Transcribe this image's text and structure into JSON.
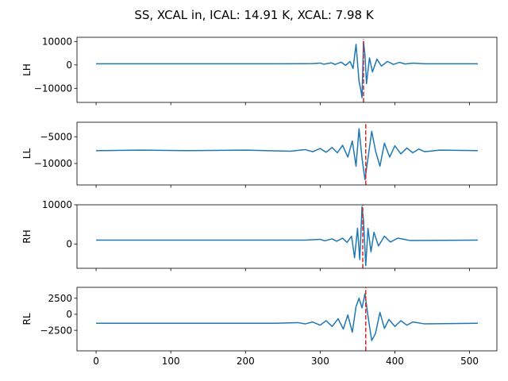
{
  "chart_data": {
    "type": "line",
    "title": "SS, XCAL in, ICAL: 14.91 K, XCAL: 7.98 K",
    "colors": {
      "series": "#1f77b4",
      "marker": "#d62728"
    },
    "x_ticks": [
      0,
      100,
      200,
      300,
      400,
      500
    ],
    "xlim": [
      -25.55,
      536.55
    ],
    "subplots": [
      {
        "ylabel": "LH",
        "ylim": [
          -16000,
          11800
        ],
        "y_ticks": [
          10000,
          0,
          -10000
        ],
        "y_tick_labels": [
          "10000",
          "0",
          "−10000"
        ],
        "marker_x": 358,
        "marker_y_range": [
          -16000,
          11000
        ],
        "baseline": 500,
        "series": [
          {
            "x": 0,
            "y": 500
          },
          {
            "x": 250,
            "y": 500
          },
          {
            "x": 290,
            "y": 550
          },
          {
            "x": 300,
            "y": 800
          },
          {
            "x": 305,
            "y": 300
          },
          {
            "x": 315,
            "y": 900
          },
          {
            "x": 320,
            "y": 200
          },
          {
            "x": 328,
            "y": 1200
          },
          {
            "x": 334,
            "y": -200
          },
          {
            "x": 340,
            "y": 1500
          },
          {
            "x": 344,
            "y": -1500
          },
          {
            "x": 348,
            "y": 8800
          },
          {
            "x": 352,
            "y": -7000
          },
          {
            "x": 354,
            "y": -10000
          },
          {
            "x": 356,
            "y": -14000
          },
          {
            "x": 358,
            "y": 10000
          },
          {
            "x": 360,
            "y": 4000
          },
          {
            "x": 362,
            "y": -8000
          },
          {
            "x": 366,
            "y": 3000
          },
          {
            "x": 370,
            "y": -3000
          },
          {
            "x": 376,
            "y": 2500
          },
          {
            "x": 382,
            "y": -500
          },
          {
            "x": 390,
            "y": 1500
          },
          {
            "x": 398,
            "y": 200
          },
          {
            "x": 406,
            "y": 1100
          },
          {
            "x": 414,
            "y": 400
          },
          {
            "x": 424,
            "y": 800
          },
          {
            "x": 440,
            "y": 500
          },
          {
            "x": 511,
            "y": 500
          }
        ]
      },
      {
        "ylabel": "LL",
        "ylim": [
          -14000,
          -2300
        ],
        "y_ticks": [
          -5000,
          -10000
        ],
        "y_tick_labels": [
          "−5000",
          "−10000"
        ],
        "marker_x": 361,
        "marker_y_range": [
          -14000,
          -2300
        ],
        "baseline": -7600,
        "series": [
          {
            "x": 0,
            "y": -7600
          },
          {
            "x": 60,
            "y": -7500
          },
          {
            "x": 120,
            "y": -7600
          },
          {
            "x": 200,
            "y": -7500
          },
          {
            "x": 260,
            "y": -7700
          },
          {
            "x": 280,
            "y": -7400
          },
          {
            "x": 290,
            "y": -7800
          },
          {
            "x": 300,
            "y": -7200
          },
          {
            "x": 308,
            "y": -7900
          },
          {
            "x": 316,
            "y": -7000
          },
          {
            "x": 323,
            "y": -8000
          },
          {
            "x": 330,
            "y": -6600
          },
          {
            "x": 337,
            "y": -8800
          },
          {
            "x": 343,
            "y": -5800
          },
          {
            "x": 348,
            "y": -10500
          },
          {
            "x": 352,
            "y": -3500
          },
          {
            "x": 356,
            "y": -9000
          },
          {
            "x": 360,
            "y": -13000
          },
          {
            "x": 364,
            "y": -9000
          },
          {
            "x": 369,
            "y": -4000
          },
          {
            "x": 374,
            "y": -7600
          },
          {
            "x": 380,
            "y": -10500
          },
          {
            "x": 386,
            "y": -6200
          },
          {
            "x": 393,
            "y": -8800
          },
          {
            "x": 400,
            "y": -6700
          },
          {
            "x": 408,
            "y": -8200
          },
          {
            "x": 416,
            "y": -7100
          },
          {
            "x": 424,
            "y": -8000
          },
          {
            "x": 432,
            "y": -7300
          },
          {
            "x": 440,
            "y": -7800
          },
          {
            "x": 460,
            "y": -7500
          },
          {
            "x": 511,
            "y": -7600
          }
        ]
      },
      {
        "ylabel": "RH",
        "ylim": [
          -6200,
          10000
        ],
        "y_ticks": [
          10000,
          0
        ],
        "y_tick_labels": [
          "10000",
          "0"
        ],
        "marker_x": 357,
        "marker_y_range": [
          -6200,
          10000
        ],
        "baseline": 1000,
        "series": [
          {
            "x": 0,
            "y": 1000
          },
          {
            "x": 280,
            "y": 1000
          },
          {
            "x": 300,
            "y": 1200
          },
          {
            "x": 306,
            "y": 800
          },
          {
            "x": 316,
            "y": 1300
          },
          {
            "x": 322,
            "y": 700
          },
          {
            "x": 330,
            "y": 1500
          },
          {
            "x": 336,
            "y": 400
          },
          {
            "x": 342,
            "y": 2000
          },
          {
            "x": 346,
            "y": -3500
          },
          {
            "x": 350,
            "y": 4000
          },
          {
            "x": 353,
            "y": -4000
          },
          {
            "x": 356,
            "y": 9500
          },
          {
            "x": 358,
            "y": 6000
          },
          {
            "x": 361,
            "y": -5500
          },
          {
            "x": 364,
            "y": 4000
          },
          {
            "x": 368,
            "y": -2000
          },
          {
            "x": 372,
            "y": 3000
          },
          {
            "x": 378,
            "y": -500
          },
          {
            "x": 386,
            "y": 2000
          },
          {
            "x": 394,
            "y": 500
          },
          {
            "x": 404,
            "y": 1500
          },
          {
            "x": 420,
            "y": 900
          },
          {
            "x": 511,
            "y": 1000
          }
        ]
      },
      {
        "ylabel": "RL",
        "ylim": [
          -5700,
          4200
        ],
        "y_ticks": [
          2500,
          0,
          -2500
        ],
        "y_tick_labels": [
          "2500",
          "0",
          "−2500"
        ],
        "marker_x": 361,
        "marker_y_range": [
          -5700,
          4200
        ],
        "baseline": -1400,
        "series": [
          {
            "x": 0,
            "y": -1400
          },
          {
            "x": 240,
            "y": -1400
          },
          {
            "x": 270,
            "y": -1300
          },
          {
            "x": 280,
            "y": -1500
          },
          {
            "x": 290,
            "y": -1200
          },
          {
            "x": 300,
            "y": -1700
          },
          {
            "x": 308,
            "y": -1000
          },
          {
            "x": 316,
            "y": -1900
          },
          {
            "x": 324,
            "y": -700
          },
          {
            "x": 331,
            "y": -2300
          },
          {
            "x": 337,
            "y": -100
          },
          {
            "x": 343,
            "y": -2800
          },
          {
            "x": 348,
            "y": 1200
          },
          {
            "x": 352,
            "y": 2500
          },
          {
            "x": 356,
            "y": 1000
          },
          {
            "x": 360,
            "y": 3200
          },
          {
            "x": 364,
            "y": -300
          },
          {
            "x": 369,
            "y": -4100
          },
          {
            "x": 374,
            "y": -3000
          },
          {
            "x": 380,
            "y": 300
          },
          {
            "x": 386,
            "y": -2200
          },
          {
            "x": 392,
            "y": -800
          },
          {
            "x": 400,
            "y": -1900
          },
          {
            "x": 408,
            "y": -1000
          },
          {
            "x": 416,
            "y": -1700
          },
          {
            "x": 424,
            "y": -1200
          },
          {
            "x": 440,
            "y": -1500
          },
          {
            "x": 511,
            "y": -1400
          }
        ]
      }
    ]
  }
}
